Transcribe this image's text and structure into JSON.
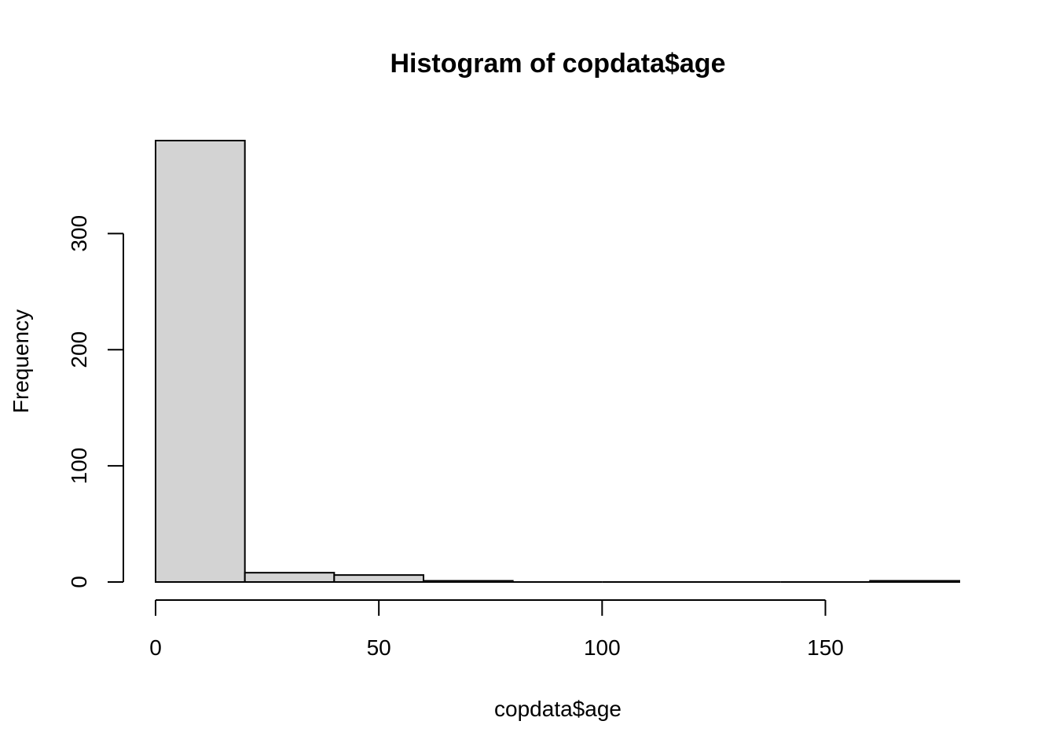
{
  "chart_data": {
    "type": "bar",
    "title": "Histogram of copdata$age",
    "xlabel": "copdata$age",
    "ylabel": "Frequency",
    "bins": [
      {
        "x0": 0,
        "x1": 20,
        "count": 380
      },
      {
        "x0": 20,
        "x1": 40,
        "count": 8
      },
      {
        "x0": 40,
        "x1": 60,
        "count": 6
      },
      {
        "x0": 60,
        "x1": 80,
        "count": 1
      },
      {
        "x0": 80,
        "x1": 100,
        "count": 0
      },
      {
        "x0": 100,
        "x1": 120,
        "count": 0
      },
      {
        "x0": 120,
        "x1": 140,
        "count": 0
      },
      {
        "x0": 140,
        "x1": 160,
        "count": 0
      },
      {
        "x0": 160,
        "x1": 180,
        "count": 1
      }
    ],
    "xlim": [
      0,
      180
    ],
    "ylim": [
      0,
      380
    ],
    "x_ticks": [
      0,
      50,
      100,
      150
    ],
    "y_ticks": [
      0,
      100,
      200,
      300
    ],
    "bar_fill": "#d3d3d3",
    "bar_stroke": "#000000",
    "grid": false,
    "legend": "none"
  }
}
